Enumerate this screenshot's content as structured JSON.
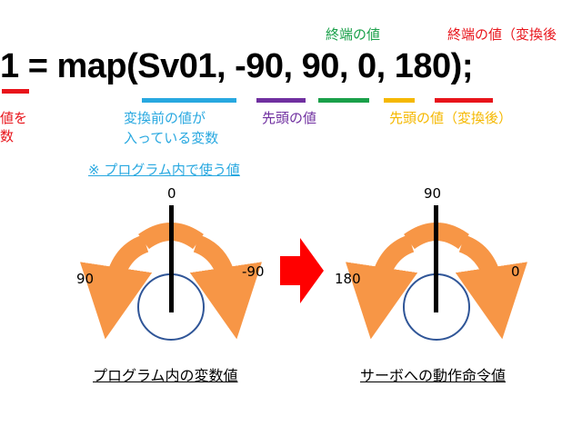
{
  "code_line": "1 = map(Sv01, -90, 90, 0, 180);",
  "labels": {
    "left_cut_line1": "値を",
    "left_cut_line2": "数",
    "input_var_line1": "変換前の値が",
    "input_var_line2": "入っている変数",
    "from_low": "先頭の値",
    "from_high": "終端の値",
    "to_low": "先頭の値（変換後）",
    "to_high": "終端の値（変換後"
  },
  "note": "※  プログラム内で使う値",
  "dial_left": {
    "top_value": "0",
    "left_value": "90",
    "right_value": "-90",
    "caption": "プログラム内の変数値"
  },
  "dial_right": {
    "top_value": "90",
    "left_value": "180",
    "right_value": "0",
    "caption": "サーボへの動作命令値"
  },
  "colors": {
    "red": "#e8141b",
    "blue": "#28a8e0",
    "purple": "#7030a0",
    "green": "#1aa04a",
    "yellow": "#f5b800",
    "orange_arrow": "#f79646",
    "circle_stroke": "#2f5597",
    "big_arrow": "#ff0000"
  }
}
